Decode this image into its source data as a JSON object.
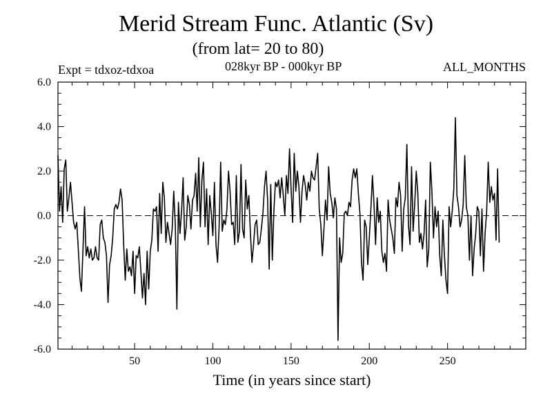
{
  "chart_data": {
    "type": "line",
    "title": "Merid Stream Func. Atlantic (Sv)",
    "subtitle": "(from lat= 20 to 80)",
    "left_label": "Expt = tdxoz-tdxoa",
    "center_label": "028kyr BP - 000kyr BP",
    "right_label": "ALL_MONTHS",
    "xlabel": "Time (in years since start)",
    "ylabel": "",
    "xlim": [
      1,
      300
    ],
    "ylim": [
      -6,
      6
    ],
    "x_ticks": [
      50,
      100,
      150,
      200,
      250
    ],
    "x_tick_labels": [
      "50",
      "100",
      "150",
      "200",
      "250"
    ],
    "y_ticks": [
      -6,
      -4,
      -2,
      0,
      2,
      4,
      6
    ],
    "y_tick_labels": [
      "-6.0",
      "-4.0",
      "-2.0",
      "0.0",
      "2.0",
      "4.0",
      "6.0"
    ],
    "reference_line": {
      "y": 0,
      "style": "dashed"
    },
    "grid": false,
    "series": [
      {
        "color": "#000000",
        "x_start": 1,
        "x_step": 1,
        "values": [
          2.7,
          0.2,
          1.3,
          -0.3,
          2.1,
          2.5,
          0.2,
          0.8,
          1.5,
          0.6,
          -0.3,
          -0.6,
          -0.3,
          -1.5,
          -2.8,
          -3.4,
          -1.5,
          0.4,
          -1.8,
          -1.4,
          -1.9,
          -1.5,
          -2.0,
          -1.9,
          -1.4,
          -1.9,
          -2.0,
          -0.4,
          -0.2,
          -1.0,
          -1.2,
          -1.8,
          -3.9,
          -2.2,
          -1.8,
          -1.0,
          0.3,
          0.5,
          0.3,
          0.6,
          1.2,
          0.7,
          -1.3,
          -2.9,
          -1.5,
          -2.5,
          -2.3,
          -2.7,
          -1.6,
          -3.5,
          -1.8,
          -1.9,
          -1.4,
          -2.5,
          -3.7,
          -2.6,
          -4.0,
          -1.6,
          -3.3,
          -1.6,
          -1.1,
          0.3,
          0.2,
          0.4,
          -1.6,
          1.0,
          -0.8,
          1.5,
          0.8,
          -1.2,
          -0.3,
          -0.8,
          -1.3,
          -0.6,
          1.1,
          -0.4,
          -4.2,
          0.6,
          -0.8,
          0.2,
          1.7,
          -1.1,
          -0.5,
          0.9,
          0.5,
          -0.6,
          0.7,
          0.9,
          1.9,
          0.2,
          2.6,
          -0.5,
          1.6,
          2.4,
          -0.5,
          1.2,
          -1.3,
          0.9,
          0.1,
          -0.9,
          1.5,
          -1.3,
          -2.1,
          -0.5,
          2.4,
          -0.7,
          -0.2,
          -0.4,
          0.3,
          2.0,
          1.1,
          -0.4,
          -0.3,
          -1.3,
          1.8,
          -1.2,
          -0.7,
          2.3,
          -0.6,
          -1.0,
          1.6,
          0.3,
          0.9,
          -0.8,
          -2.1,
          -1.3,
          -0.4,
          -0.2,
          -1.3,
          -1.2,
          -0.6,
          0.1,
          1.3,
          2.0,
          0.7,
          -2.4,
          1.4,
          -2.0,
          0.2,
          1.5,
          1.3,
          1.6,
          0.8,
          1.7,
          0.9,
          0.0,
          1.8,
          1.0,
          3.0,
          1.2,
          -0.3,
          2.8,
          1.1,
          2.0,
          1.3,
          -0.3,
          1.1,
          1.8,
          1.4,
          0.7,
          1.5,
          1.1,
          2.0,
          1.7,
          1.6,
          2.2,
          2.8,
          0.3,
          -0.4,
          -1.8,
          -0.6,
          0.7,
          -0.2,
          2.2,
          1.0,
          0.6,
          -0.1,
          0.8,
          0.3,
          -5.6,
          -1.0,
          -2.1,
          -1.7,
          0.1,
          0.2,
          0.0,
          0.6,
          0.4,
          1.6,
          2.1,
          1.7,
          2.1,
          1.0,
          0.1,
          -2.1,
          -2.9,
          -0.2,
          -0.5,
          -2.2,
          -1.0,
          0.3,
          1.8,
          0.5,
          -1.3,
          0.8,
          -0.3,
          0.2,
          -1.6,
          -2.1,
          -1.7,
          -2.5,
          0.7,
          -0.2,
          -0.6,
          -1.0,
          -1.7,
          0.8,
          0.4,
          1.5,
          0.9,
          -1.6,
          0.3,
          0.8,
          3.2,
          -0.4,
          -1.3,
          2.2,
          -0.7,
          0.5,
          2.0,
          1.0,
          -1.2,
          -0.8,
          -1.5,
          -0.8,
          0.7,
          -2.3,
          -1.5,
          2.4,
          1.1,
          -1.0,
          0.4,
          -0.5,
          0.2,
          -1.8,
          -2.7,
          -0.2,
          -1.8,
          -2.9,
          -3.5,
          0.4,
          -0.5,
          0.2,
          1.2,
          4.4,
          0.9,
          0.4,
          -0.5,
          -0.2,
          0.5,
          2.7,
          0.4,
          0.0,
          -2.0,
          0.0,
          -2.7,
          -1.5,
          -0.8,
          0.4,
          0.2,
          -1.8,
          0.3,
          -2.5,
          -0.8,
          0.2,
          2.4,
          0.6,
          1.3,
          0.7,
          1.0,
          -1.1,
          2.1,
          -1.2
        ]
      }
    ]
  }
}
